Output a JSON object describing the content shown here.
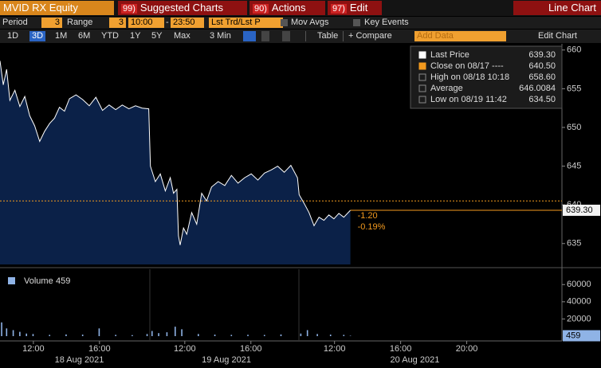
{
  "header": {
    "ticker": "MVID RX Equity",
    "menu": [
      {
        "key": "99)",
        "label": "Suggested Charts"
      },
      {
        "key": "90)",
        "label": "Actions"
      },
      {
        "key": "97)",
        "label": "Edit"
      }
    ],
    "title": "Line Chart"
  },
  "toolbar1": {
    "period_label": "Period",
    "period": "3",
    "range_label": "Range",
    "range": "3",
    "start": "10:00",
    "separator": "-",
    "end": "23:50",
    "field": "Lst Trd/Lst P",
    "mov_avgs": "Mov Avgs",
    "key_events": "Key Events"
  },
  "toolbar2": {
    "ranges": [
      "1D",
      "3D",
      "1M",
      "6M",
      "YTD",
      "1Y",
      "5Y",
      "Max"
    ],
    "interval": "3 Min",
    "table": "Table",
    "compare": "+ Compare",
    "add_data": "Add Data",
    "edit_chart": "Edit Chart"
  },
  "chart_data": [
    {
      "type": "area",
      "color": "#ffffff",
      "fill": "#0b2148",
      "xlim": [
        0,
        34
      ],
      "ylim": [
        632.3,
        660.8
      ],
      "yticks": [
        635,
        640,
        645,
        650,
        655,
        660
      ],
      "xticks": [
        {
          "value": 2.02,
          "label": "12:00"
        },
        {
          "value": 6.02,
          "label": "16:00"
        },
        {
          "value": 11.18,
          "label": "12:00"
        },
        {
          "value": 15.18,
          "label": "16:00"
        },
        {
          "value": 20.24,
          "label": "12:00"
        },
        {
          "value": 24.24,
          "label": "16:00"
        },
        {
          "value": 28.24,
          "label": "20:00"
        }
      ],
      "date_ticks": [
        {
          "value": 4.8,
          "label": "18 Aug 2021"
        },
        {
          "value": 13.7,
          "label": "19 Aug 2021"
        },
        {
          "value": 25.1,
          "label": "20 Aug 2021"
        }
      ],
      "x": [
        0,
        0.2,
        0.4,
        0.6,
        0.9,
        1.2,
        1.5,
        1.8,
        2.1,
        2.4,
        2.7,
        3.0,
        3.3,
        3.6,
        3.9,
        4.2,
        4.6,
        5.0,
        5.4,
        5.8,
        6.2,
        6.6,
        7.0,
        7.4,
        7.8,
        8.2,
        8.6,
        9.0,
        9.1,
        9.4,
        9.7,
        10.0,
        10.3,
        10.5,
        10.7,
        10.8,
        10.9,
        11.1,
        11.3,
        11.6,
        11.9,
        12.2,
        12.5,
        12.8,
        13.2,
        13.6,
        14.0,
        14.4,
        14.8,
        15.2,
        15.6,
        16.0,
        16.4,
        16.8,
        17.2,
        17.6,
        18.0,
        18.1,
        18.4,
        18.7,
        19.0,
        19.3,
        19.6,
        19.9,
        20.2,
        20.5,
        20.8,
        21.2
      ],
      "values": [
        658.6,
        655.5,
        657.5,
        653.5,
        654.8,
        652.7,
        654.0,
        651.5,
        650.2,
        648.2,
        649.5,
        650.5,
        651.2,
        652.6,
        652.1,
        653.7,
        654.2,
        653.6,
        652.8,
        653.9,
        652.2,
        652.9,
        652.3,
        652.9,
        652.4,
        652.8,
        652.5,
        652.4,
        645.0,
        643.0,
        644.0,
        641.8,
        643.5,
        641.5,
        642.0,
        636.0,
        634.8,
        637.0,
        636.2,
        639.0,
        637.5,
        641.5,
        640.5,
        642.3,
        643.0,
        642.5,
        643.8,
        642.8,
        643.5,
        644.0,
        643.2,
        644.1,
        644.5,
        645.0,
        644.2,
        645.1,
        643.5,
        641.3,
        640.2,
        639.0,
        637.3,
        638.4,
        638.0,
        638.7,
        638.2,
        638.9,
        638.4,
        639.3
      ],
      "last_price": {
        "value": 639.3,
        "label": "639.30"
      },
      "prev_close": 640.5,
      "reference_color": "#f39a1e",
      "change": "-1.20",
      "change_pct": "-0.19%",
      "legend": [
        {
          "label": "Last Price",
          "value": "639.30"
        },
        {
          "label": "Close on 08/17 ----",
          "value": "640.50"
        },
        {
          "label": "High on 08/18 10:18",
          "value": "658.60"
        },
        {
          "label": "Average",
          "value": "646.0084"
        },
        {
          "label": "Low on 08/19 11:42",
          "value": "634.50"
        }
      ]
    },
    {
      "type": "bar",
      "name": "Volume",
      "last_value": 459,
      "color": "#8fb3e6",
      "ylim": [
        0,
        76000
      ],
      "yticks": [
        20000,
        40000,
        60000
      ],
      "x": [
        0.1,
        0.4,
        0.8,
        1.2,
        1.6,
        2.0,
        3.0,
        4.0,
        5.0,
        6.0,
        7.0,
        8.0,
        8.9,
        9.2,
        9.6,
        10.1,
        10.6,
        11.0,
        12.0,
        13.0,
        14.0,
        15.0,
        16.0,
        17.0,
        18.2,
        18.6,
        19.2,
        20.0,
        20.8,
        21.2
      ],
      "values": [
        16000,
        9000,
        7000,
        5000,
        3000,
        2500,
        1500,
        2000,
        1800,
        9000,
        1500,
        1200,
        2500,
        6000,
        3500,
        4500,
        11000,
        8000,
        2500,
        1800,
        1500,
        1600,
        1400,
        2000,
        3000,
        7000,
        2500,
        1800,
        1500,
        459
      ]
    }
  ]
}
